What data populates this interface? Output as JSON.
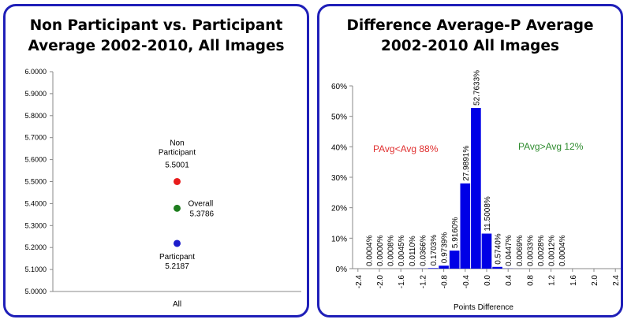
{
  "chart_data": [
    {
      "type": "scatter",
      "title_lines": [
        "Non Participant vs. Participant",
        "Average 2002-2010, All Images"
      ],
      "xlabel": "",
      "ylabel": "",
      "categories": [
        "All"
      ],
      "ylim": [
        5.0,
        6.0
      ],
      "ytick_labels": [
        "5.0000",
        "5.1000",
        "5.2000",
        "5.3000",
        "5.4000",
        "5.5000",
        "5.6000",
        "5.7000",
        "5.8000",
        "5.9000",
        "6.0000"
      ],
      "yticks": [
        5.0,
        5.1,
        5.2,
        5.3,
        5.4,
        5.5,
        5.6,
        5.7,
        5.8,
        5.9,
        6.0
      ],
      "points": [
        {
          "name_lines": [
            "Non",
            "Participant"
          ],
          "value_label": "5.5001",
          "value": 5.5001,
          "color": "#e81c1c",
          "label_side": "above"
        },
        {
          "name_lines": [
            "Overall"
          ],
          "value_label": "5.3786",
          "value": 5.3786,
          "color": "#1e7d1e",
          "label_side": "right"
        },
        {
          "name_lines": [
            "Particpant"
          ],
          "value_label": "5.2187",
          "value": 5.2187,
          "color": "#1c1ccc",
          "label_side": "below"
        }
      ]
    },
    {
      "type": "bar",
      "title_lines": [
        "Difference Average-P Average",
        "2002-2010 All Images"
      ],
      "xlabel": "Points Difference",
      "ylabel": "",
      "xlim": [
        -2.5,
        2.5
      ],
      "ylim": [
        0,
        0.6
      ],
      "bar_width": 0.2,
      "xtick_labels": [
        "-2.4",
        "-2.0",
        "-1.6",
        "-1.2",
        "-0.8",
        "-0.4",
        "0.0",
        "0.4",
        "0.8",
        "1.2",
        "1.6",
        "2.0",
        "2.4"
      ],
      "xticks": [
        -2.4,
        -2.0,
        -1.6,
        -1.2,
        -0.8,
        -0.4,
        0.0,
        0.4,
        0.8,
        1.2,
        1.6,
        2.0,
        2.4
      ],
      "ytick_labels": [
        "0%",
        "10%",
        "20%",
        "30%",
        "40%",
        "50%",
        "60%"
      ],
      "yticks": [
        0,
        0.1,
        0.2,
        0.3,
        0.4,
        0.5,
        0.6
      ],
      "bar_color": "#0000e6",
      "bars": [
        {
          "x": -2.2,
          "value": 4e-06,
          "label": "0.0004%"
        },
        {
          "x": -2.0,
          "value": 0.0,
          "label": "0.0000%"
        },
        {
          "x": -1.8,
          "value": 8e-06,
          "label": "0.0008%"
        },
        {
          "x": -1.6,
          "value": 4.5e-05,
          "label": "0.0045%"
        },
        {
          "x": -1.4,
          "value": 0.00011,
          "label": "0.0110%"
        },
        {
          "x": -1.2,
          "value": 0.000366,
          "label": "0.0366%"
        },
        {
          "x": -1.0,
          "value": 0.001703,
          "label": "0.1703%"
        },
        {
          "x": -0.8,
          "value": 0.009739,
          "label": "0.9739%"
        },
        {
          "x": -0.6,
          "value": 0.05916,
          "label": "5.9160%"
        },
        {
          "x": -0.4,
          "value": 0.279891,
          "label": "27.9891%"
        },
        {
          "x": -0.2,
          "value": 0.527633,
          "label": "52.7633%"
        },
        {
          "x": 0.0,
          "value": 0.115008,
          "label": "11.5008%"
        },
        {
          "x": 0.2,
          "value": 0.00574,
          "label": "0.5740%"
        },
        {
          "x": 0.4,
          "value": 0.000447,
          "label": "0.0447%"
        },
        {
          "x": 0.6,
          "value": 6.9e-05,
          "label": "0.0069%"
        },
        {
          "x": 0.8,
          "value": 3.3e-05,
          "label": "0.0033%"
        },
        {
          "x": 1.0,
          "value": 2.8e-05,
          "label": "0.0028%"
        },
        {
          "x": 1.2,
          "value": 1.2e-05,
          "label": "0.0012%"
        },
        {
          "x": 1.4,
          "value": 4e-06,
          "label": "0.0004%"
        }
      ],
      "annotations": [
        {
          "text": "PAvg<Avg 88%",
          "color": "#e03030"
        },
        {
          "text": "PAvg>Avg 12%",
          "color": "#2e8b2e"
        }
      ]
    }
  ]
}
